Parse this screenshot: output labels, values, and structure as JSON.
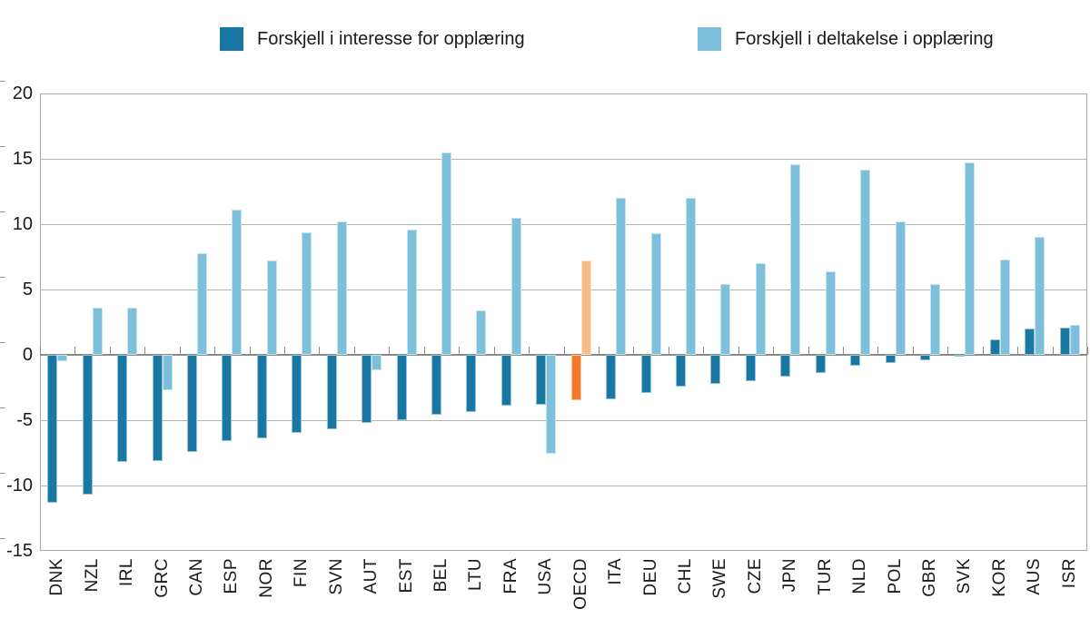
{
  "legend": [
    {
      "label": "Forskjell i interesse for opplæring",
      "color": "#1878A3"
    },
    {
      "label": "Forskjell i deltakelse i opplæring",
      "color": "#7EC0DB"
    }
  ],
  "colors": {
    "series_interesse": "#1878A3",
    "series_deltakelse": "#7EC0DB",
    "highlight_interesse": "#F0792A",
    "highlight_deltakelse": "#FABC87",
    "gridline": "#b2b2b2",
    "zero_line": "#8a8a8a",
    "text": "#1a1a1a"
  },
  "chart_data": {
    "type": "bar",
    "title": "",
    "xlabel": "",
    "ylabel": "",
    "categories": [
      "DNK",
      "NZL",
      "IRL",
      "GRC",
      "CAN",
      "ESP",
      "NOR",
      "FIN",
      "SVN",
      "AUT",
      "EST",
      "BEL",
      "LTU",
      "FRA",
      "USA",
      "OECD",
      "ITA",
      "DEU",
      "CHL",
      "SWE",
      "CZE",
      "JPN",
      "TUR",
      "NLD",
      "POL",
      "GBR",
      "SVK",
      "KOR",
      "AUS",
      "ISR"
    ],
    "series": [
      {
        "name": "Forskjell i interesse for opplæring",
        "color": "#1878A3",
        "highlight_color": "#F0792A",
        "values": [
          -11.3,
          -10.7,
          -8.2,
          -8.1,
          -7.4,
          -6.6,
          -6.4,
          -6.0,
          -5.7,
          -5.2,
          -5.0,
          -4.6,
          -4.4,
          -3.9,
          -3.8,
          -3.5,
          -3.4,
          -2.9,
          -2.4,
          -2.2,
          -2.0,
          -1.7,
          -1.4,
          -0.8,
          -0.6,
          -0.4,
          -0.1,
          1.2,
          2.0,
          2.1
        ]
      },
      {
        "name": "Forskjell i deltakelse i opplæring",
        "color": "#7EC0DB",
        "highlight_color": "#FABC87",
        "values": [
          -0.5,
          3.6,
          3.6,
          -2.7,
          7.8,
          11.1,
          7.2,
          9.4,
          10.2,
          -1.2,
          9.6,
          15.5,
          3.4,
          10.5,
          -7.6,
          7.2,
          12.0,
          9.3,
          12.0,
          5.4,
          7.0,
          14.6,
          6.4,
          14.2,
          10.2,
          5.4,
          14.7,
          7.3,
          9.0,
          2.3
        ]
      }
    ],
    "highlight_category": "OECD",
    "ylim": [
      -15,
      20
    ],
    "yticks": [
      20,
      15,
      10,
      5,
      0,
      -5,
      -10,
      -15
    ],
    "grid": true,
    "legend_position": "top"
  }
}
